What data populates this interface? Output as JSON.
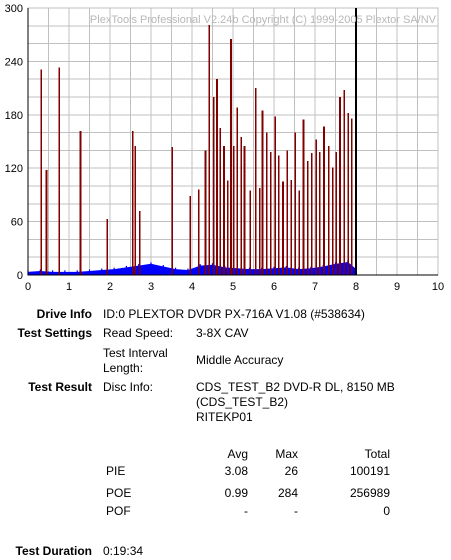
{
  "watermark": "PlexTools Professional V2.24b Copyright (C) 1999-2005 Plextor SA/NV",
  "chart_data": {
    "type": "bar",
    "xlim": [
      0,
      10
    ],
    "ylim": [
      0,
      300
    ],
    "x_ticks": [
      "0",
      "1",
      "2",
      "3",
      "4",
      "5",
      "6",
      "7",
      "8",
      "9",
      "10"
    ],
    "y_ticks": [
      "0",
      "60",
      "120",
      "180",
      "240",
      "300"
    ],
    "grid": true,
    "scan_end_x": 8.0,
    "colors": {
      "pie": "#0000ff",
      "poe": "#800000",
      "grid": "#c0c0c0",
      "axis": "#000000"
    },
    "series": [
      {
        "name": "PIE",
        "x": [
          0.0,
          0.3,
          0.6,
          0.9,
          1.2,
          1.5,
          1.8,
          2.1,
          2.4,
          2.7,
          3.0,
          3.3,
          3.6,
          3.9,
          4.2,
          4.5,
          4.8,
          5.1,
          5.4,
          5.7,
          6.0,
          6.3,
          6.6,
          6.9,
          7.2,
          7.5,
          7.8,
          8.0
        ],
        "values": [
          3,
          4,
          3,
          3,
          3,
          4,
          5,
          6,
          8,
          10,
          12,
          9,
          6,
          5,
          10,
          11,
          8,
          7,
          6,
          6,
          7,
          8,
          6,
          7,
          9,
          12,
          14,
          6
        ]
      },
      {
        "name": "POE",
        "x": [
          0.32,
          0.45,
          0.76,
          1.28,
          1.93,
          2.55,
          2.62,
          2.73,
          3.52,
          3.96,
          4.16,
          4.33,
          4.42,
          4.53,
          4.61,
          4.69,
          4.78,
          4.87,
          4.95,
          5.02,
          5.1,
          5.2,
          5.28,
          5.42,
          5.55,
          5.65,
          5.72,
          5.82,
          5.92,
          6.03,
          6.12,
          6.22,
          6.32,
          6.42,
          6.52,
          6.62,
          6.72,
          6.82,
          6.92,
          7.03,
          7.12,
          7.22,
          7.34,
          7.43,
          7.52,
          7.61,
          7.71,
          7.81,
          7.9
        ],
        "values": [
          231,
          118,
          233,
          162,
          63,
          162,
          145,
          72,
          144,
          89,
          96,
          140,
          281,
          200,
          220,
          165,
          145,
          106,
          265,
          145,
          188,
          155,
          145,
          95,
          210,
          98,
          185,
          160,
          138,
          178,
          134,
          105,
          140,
          107,
          160,
          95,
          175,
          128,
          137,
          152,
          138,
          167,
          145,
          121,
          138,
          200,
          208,
          182,
          176
        ]
      }
    ]
  },
  "info": {
    "drive_info_label": "Drive Info",
    "drive_info_value": "ID:0 PLEXTOR DVDR PX-716A V1.08 (#538634)",
    "test_settings_label": "Test Settings",
    "read_speed_label": "Read Speed:",
    "read_speed_value": "3-8X CAV",
    "interval_label_1": "Test Interval",
    "interval_label_2": "Length:",
    "interval_value": "Middle Accuracy",
    "test_result_label": "Test Result",
    "disc_info_label": "Disc Info:",
    "disc_info_line1": "CDS_TEST_B2 DVD-R DL, 8150 MB",
    "disc_info_line2": "(CDS_TEST_B2)",
    "disc_info_line3": "RITEKP01"
  },
  "results": {
    "columns": [
      "Avg",
      "Max",
      "Total"
    ],
    "rows": [
      {
        "label": "PIE",
        "avg": "3.08",
        "max": "26",
        "total": "100191"
      },
      {
        "label": "POE",
        "avg": "0.99",
        "max": "284",
        "total": "256989"
      },
      {
        "label": "POF",
        "avg": "-",
        "max": "-",
        "total": "0"
      }
    ]
  },
  "duration": {
    "label": "Test Duration",
    "value": "0:19:34"
  }
}
